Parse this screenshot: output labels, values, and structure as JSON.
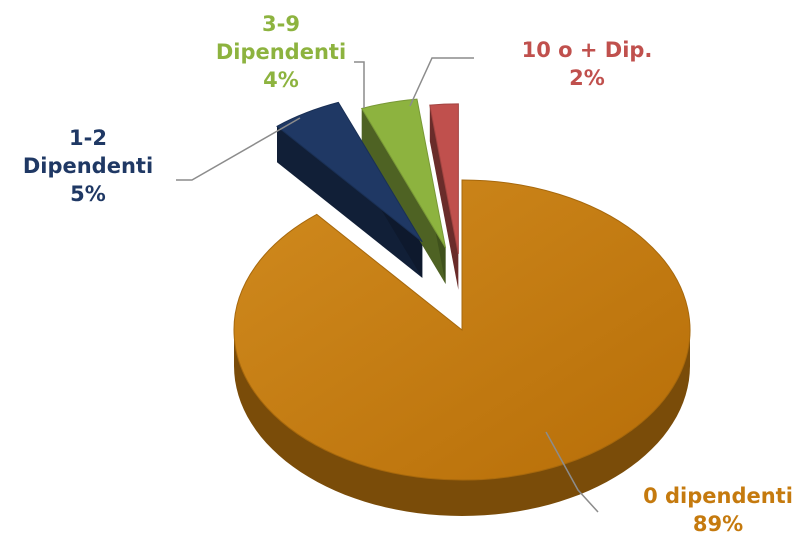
{
  "chart_data": {
    "type": "pie",
    "style": "3d-exploded",
    "title": "",
    "slices": [
      {
        "name": "0 dipendenti",
        "value": 89,
        "label": "89%",
        "color": "#C57A0E"
      },
      {
        "name": "1-2 Dipendenti",
        "value": 5,
        "label": "5%",
        "color": "#1F3864"
      },
      {
        "name": "3-9 Dipendenti",
        "value": 4,
        "label": "4%",
        "color": "#8DB33F"
      },
      {
        "name": "10 o + Dip.",
        "value": 2,
        "label": "2%",
        "color": "#C0504D"
      }
    ],
    "label_lines": [
      [
        "0 dipendenti",
        "89%"
      ],
      [
        "1-2",
        "Dipendenti",
        "5%"
      ],
      [
        "3-9",
        "Dipendenti",
        "4%"
      ],
      [
        "10 o + Dip.",
        "2%"
      ]
    ]
  }
}
